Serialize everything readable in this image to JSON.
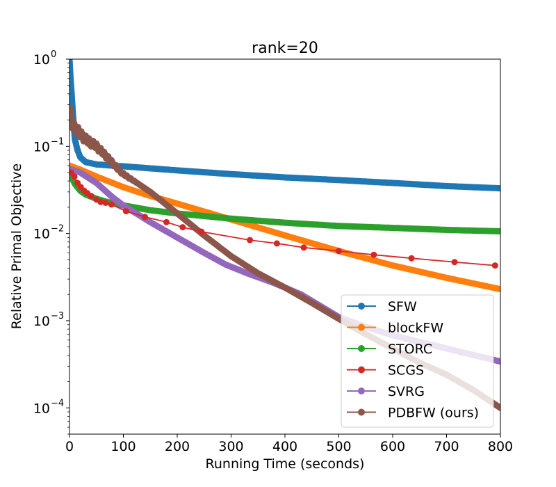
{
  "chart_data": {
    "type": "line",
    "title": "rank=20",
    "xlabel": "Running Time (seconds)",
    "ylabel": "Relative Primal Objective",
    "xlim": [
      0,
      800
    ],
    "ylim": [
      5e-05,
      1
    ],
    "yscale": "log",
    "x_ticks": [
      {
        "value": 0,
        "label": "0"
      },
      {
        "value": 100,
        "label": "100"
      },
      {
        "value": 200,
        "label": "200"
      },
      {
        "value": 300,
        "label": "300"
      },
      {
        "value": 400,
        "label": "400"
      },
      {
        "value": 500,
        "label": "500"
      },
      {
        "value": 600,
        "label": "600"
      },
      {
        "value": 700,
        "label": "700"
      },
      {
        "value": 800,
        "label": "800"
      }
    ],
    "y_ticks": [
      {
        "value": 1,
        "base": "10",
        "exp": "0"
      },
      {
        "value": 0.1,
        "base": "10",
        "exp": "−1"
      },
      {
        "value": 0.01,
        "base": "10",
        "exp": "−2"
      },
      {
        "value": 0.001,
        "base": "10",
        "exp": "−3"
      },
      {
        "value": 0.0001,
        "base": "10",
        "exp": "−4"
      }
    ],
    "legend_position": "bottom-right",
    "series": [
      {
        "name": "SFW",
        "color": "#1f77b4",
        "style": "dense",
        "x": [
          0,
          2,
          4,
          6,
          8,
          10,
          15,
          20,
          30,
          50,
          80,
          100,
          200,
          300,
          400,
          500,
          600,
          700,
          800
        ],
        "y": [
          1.0,
          0.6,
          0.4,
          0.25,
          0.17,
          0.12,
          0.09,
          0.075,
          0.066,
          0.062,
          0.06,
          0.059,
          0.053,
          0.048,
          0.044,
          0.041,
          0.038,
          0.035,
          0.033
        ]
      },
      {
        "name": "blockFW",
        "color": "#ff7f0e",
        "style": "dense",
        "x": [
          0,
          20,
          50,
          100,
          150,
          200,
          300,
          400,
          500,
          600,
          700,
          800
        ],
        "y": [
          0.06,
          0.054,
          0.045,
          0.034,
          0.027,
          0.022,
          0.0145,
          0.0095,
          0.0063,
          0.0043,
          0.0031,
          0.0023
        ]
      },
      {
        "name": "STORC",
        "color": "#2ca02c",
        "style": "dense",
        "x": [
          0,
          5,
          10,
          20,
          30,
          50,
          70,
          100,
          150,
          200,
          300,
          400,
          500,
          600,
          700,
          800
        ],
        "y": [
          0.052,
          0.043,
          0.037,
          0.031,
          0.028,
          0.025,
          0.023,
          0.021,
          0.0185,
          0.017,
          0.0148,
          0.0133,
          0.0122,
          0.0116,
          0.011,
          0.0106
        ]
      },
      {
        "name": "SCGS",
        "color": "#d62728",
        "style": "markers",
        "x": [
          3,
          9,
          15,
          21,
          27,
          33,
          40,
          50,
          58,
          67,
          78,
          105,
          140,
          180,
          210,
          245,
          335,
          385,
          435,
          500,
          565,
          635,
          715,
          790
        ],
        "y": [
          0.05,
          0.045,
          0.038,
          0.034,
          0.031,
          0.029,
          0.027,
          0.0245,
          0.023,
          0.0225,
          0.0215,
          0.018,
          0.0155,
          0.0135,
          0.0118,
          0.0105,
          0.0084,
          0.0077,
          0.0069,
          0.0063,
          0.0057,
          0.0052,
          0.0047,
          0.0043
        ]
      },
      {
        "name": "SVRG",
        "color": "#9467bd",
        "style": "dense",
        "x": [
          0,
          20,
          50,
          80,
          100,
          150,
          200,
          250,
          290,
          330,
          380,
          430,
          500,
          550,
          600,
          650,
          700,
          800
        ],
        "y": [
          0.055,
          0.05,
          0.038,
          0.026,
          0.021,
          0.0135,
          0.009,
          0.006,
          0.0044,
          0.0035,
          0.0027,
          0.002,
          0.0011,
          0.00085,
          0.00068,
          0.00057,
          0.00048,
          0.00034
        ]
      },
      {
        "name": "PDBFW (ours)",
        "color": "#8c564b",
        "style": "dense",
        "noisy": true,
        "x": [
          0,
          5,
          15,
          30,
          50,
          70,
          90,
          100,
          120,
          150,
          200,
          250,
          300,
          350,
          400,
          450,
          500,
          550,
          600,
          650,
          700,
          750,
          800
        ],
        "y": [
          0.28,
          0.18,
          0.15,
          0.12,
          0.1,
          0.075,
          0.055,
          0.048,
          0.04,
          0.03,
          0.017,
          0.0095,
          0.0055,
          0.0035,
          0.0024,
          0.0016,
          0.00105,
          0.0007,
          0.00048,
          0.00033,
          0.00024,
          0.00016,
          0.0001
        ]
      }
    ]
  }
}
